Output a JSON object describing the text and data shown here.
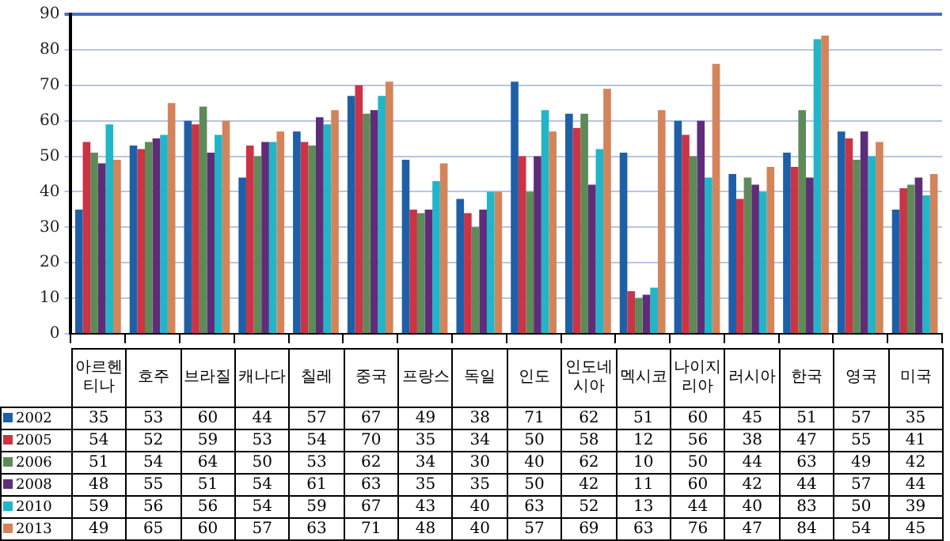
{
  "chart_data": {
    "type": "bar",
    "categories": [
      "아르헨티나",
      "호주",
      "브라질",
      "캐나다",
      "칠레",
      "중국",
      "프랑스",
      "독일",
      "인도",
      "인도네시아",
      "멕시코",
      "나이지리아",
      "러시아",
      "한국",
      "영국",
      "미국"
    ],
    "series": [
      {
        "name": "2002",
        "color": "#1f5fa8",
        "values": [
          35,
          53,
          60,
          44,
          57,
          67,
          49,
          38,
          71,
          62,
          51,
          60,
          45,
          51,
          57,
          35
        ]
      },
      {
        "name": "2005",
        "color": "#cc3344",
        "values": [
          54,
          52,
          59,
          53,
          54,
          70,
          35,
          34,
          50,
          58,
          12,
          56,
          38,
          47,
          55,
          41
        ]
      },
      {
        "name": "2006",
        "color": "#5e8a58",
        "values": [
          51,
          54,
          64,
          50,
          53,
          62,
          34,
          30,
          40,
          62,
          10,
          50,
          44,
          63,
          49,
          42
        ]
      },
      {
        "name": "2008",
        "color": "#5e2d7a",
        "values": [
          48,
          55,
          51,
          54,
          61,
          63,
          35,
          35,
          50,
          42,
          11,
          60,
          42,
          44,
          57,
          44
        ]
      },
      {
        "name": "2010",
        "color": "#22b5c8",
        "values": [
          59,
          56,
          56,
          54,
          59,
          67,
          43,
          40,
          63,
          52,
          13,
          44,
          40,
          83,
          50,
          39
        ]
      },
      {
        "name": "2013",
        "color": "#d4845a",
        "values": [
          49,
          65,
          60,
          57,
          63,
          71,
          48,
          40,
          57,
          69,
          63,
          76,
          47,
          84,
          54,
          45
        ]
      }
    ],
    "ylim": [
      0,
      90
    ],
    "yticks": [
      0,
      10,
      20,
      30,
      40,
      50,
      60,
      70,
      80,
      90
    ],
    "grid": "y",
    "legend": "bottom",
    "data_labels": true
  }
}
